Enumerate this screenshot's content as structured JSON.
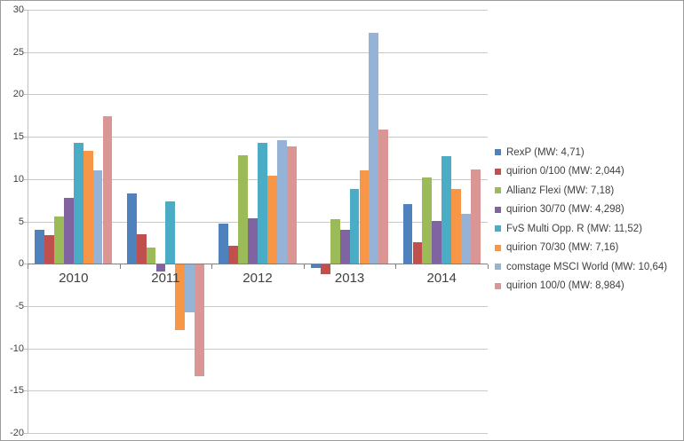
{
  "chart_data": {
    "type": "bar",
    "title": "",
    "xlabel": "",
    "ylabel": "",
    "categories": [
      "2010",
      "2011",
      "2012",
      "2013",
      "2014"
    ],
    "series": [
      {
        "name": "RexP",
        "legend_label": "RexP  (MW: 4,71)",
        "color": "#4F81BD",
        "values": [
          4.0,
          8.3,
          4.7,
          -0.4,
          7.1
        ]
      },
      {
        "name": "quirion 0/100",
        "legend_label": "quirion 0/100  (MW: 2,044)",
        "color": "#C0504D",
        "values": [
          3.4,
          3.5,
          2.1,
          -1.1,
          2.5
        ]
      },
      {
        "name": "Allianz Flexi",
        "legend_label": "Allianz Flexi  (MW: 7,18)",
        "color": "#9BBB59",
        "values": [
          5.6,
          1.9,
          12.8,
          5.3,
          10.2
        ]
      },
      {
        "name": "quirion 30/70",
        "legend_label": "quirion 30/70  (MW: 4,298)",
        "color": "#8064A2",
        "values": [
          7.8,
          -0.8,
          5.4,
          4.0,
          5.1
        ]
      },
      {
        "name": "FvS Multi Opp. R",
        "legend_label": "FvS Multi Opp. R  (MW: 11,52)",
        "color": "#4BACC6",
        "values": [
          14.3,
          7.4,
          14.3,
          8.8,
          12.7
        ]
      },
      {
        "name": "quirion 70/30",
        "legend_label": "quirion 70/30  (MW: 7,16)",
        "color": "#F79646",
        "values": [
          13.3,
          -7.7,
          10.4,
          11.0,
          8.8
        ]
      },
      {
        "name": "comstage MSCI World",
        "legend_label": "comstage MSCI World  (MW: 10,64)",
        "color": "#95B3D7",
        "values": [
          11.0,
          -5.6,
          14.6,
          27.3,
          5.9
        ]
      },
      {
        "name": "quirion 100/0",
        "legend_label": "quirion 100/0  (MW: 8,984)",
        "color": "#D99694",
        "values": [
          17.4,
          -13.2,
          13.9,
          15.9,
          11.1
        ]
      }
    ],
    "ylim": [
      -20,
      30
    ],
    "ytick_step": 5,
    "ytick_labels": [
      "30",
      "25",
      "20",
      "15",
      "10",
      "5",
      "0",
      "-5",
      "-10",
      "-15",
      "-20"
    ],
    "grid": true,
    "legend_position": "right",
    "colors": {
      "gridline": "#C9C9C9",
      "zero_line": "#808080",
      "axis_line": "#BFBFBF",
      "label_text": "#404040",
      "background": "#FFFFFF",
      "window_border": "#9B9B9B"
    }
  }
}
